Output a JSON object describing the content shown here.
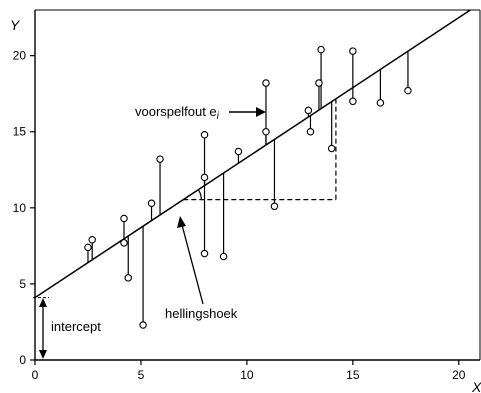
{
  "chart_data": {
    "type": "scatter",
    "title": "",
    "xlabel": "X",
    "ylabel": "Y",
    "xlim": [
      0,
      21
    ],
    "ylim": [
      0,
      23
    ],
    "xticks": [
      0,
      5,
      10,
      15,
      20
    ],
    "yticks": [
      0,
      5,
      10,
      15,
      20
    ],
    "grid": false,
    "regression_line": {
      "intercept": 4.1,
      "slope": 0.92
    },
    "points": [
      {
        "x": 2.5,
        "y": 7.4
      },
      {
        "x": 2.7,
        "y": 7.9
      },
      {
        "x": 4.2,
        "y": 9.3
      },
      {
        "x": 4.2,
        "y": 7.7
      },
      {
        "x": 4.4,
        "y": 5.4
      },
      {
        "x": 5.1,
        "y": 2.3
      },
      {
        "x": 5.5,
        "y": 10.3
      },
      {
        "x": 5.9,
        "y": 13.2
      },
      {
        "x": 8.0,
        "y": 14.8
      },
      {
        "x": 8.0,
        "y": 12.0
      },
      {
        "x": 8.0,
        "y": 7.0
      },
      {
        "x": 8.9,
        "y": 6.8
      },
      {
        "x": 9.6,
        "y": 13.7
      },
      {
        "x": 10.9,
        "y": 18.2
      },
      {
        "x": 10.9,
        "y": 15.0
      },
      {
        "x": 11.3,
        "y": 10.1
      },
      {
        "x": 12.9,
        "y": 16.4
      },
      {
        "x": 13.0,
        "y": 15.0
      },
      {
        "x": 13.4,
        "y": 18.2
      },
      {
        "x": 13.5,
        "y": 20.4
      },
      {
        "x": 14.0,
        "y": 13.9
      },
      {
        "x": 15.0,
        "y": 20.3
      },
      {
        "x": 15.0,
        "y": 17.0
      },
      {
        "x": 16.3,
        "y": 16.9
      },
      {
        "x": 17.6,
        "y": 17.7
      }
    ],
    "annotations": {
      "error_label": "voorspelfout e",
      "error_label_sub": "i",
      "slope_label": "hellingshoek",
      "intercept_label": "intercept"
    },
    "slope_triangle": {
      "x_from": 7.0,
      "x_to": 14.2
    }
  }
}
